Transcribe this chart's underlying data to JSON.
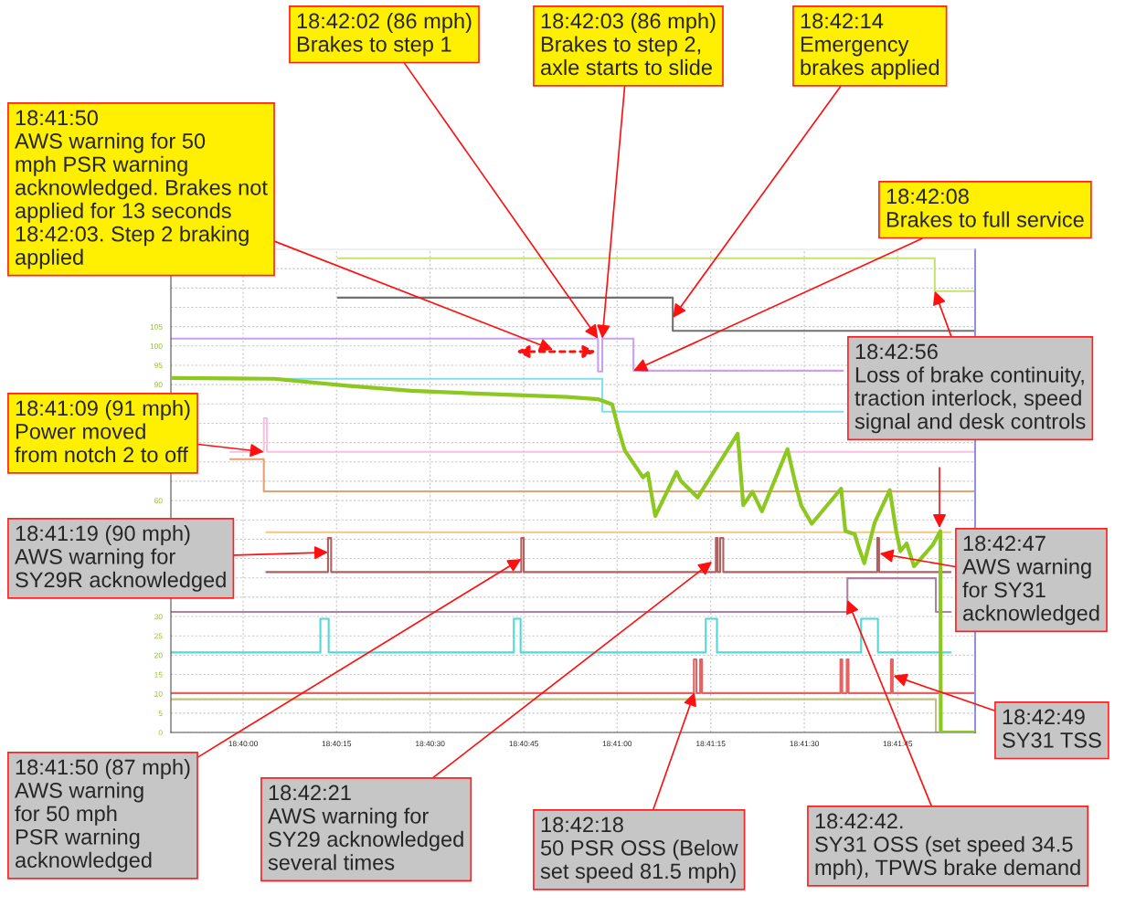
{
  "chart_data": {
    "type": "line",
    "xlim": [
      18.66345,
      18.69928
    ],
    "ylim": [
      0,
      125
    ],
    "xticks": [
      {
        "value": 18.66667,
        "label": "18:40:00"
      },
      {
        "value": 18.67083,
        "label": "18:40:15"
      },
      {
        "value": 18.675,
        "label": "18:40:30"
      },
      {
        "value": 18.67917,
        "label": "18:40:45"
      },
      {
        "value": 18.68333,
        "label": "18:41:00"
      },
      {
        "value": 18.6875,
        "label": "18:41:15"
      },
      {
        "value": 18.69167,
        "label": "18:41:30"
      },
      {
        "value": 18.69583,
        "label": "18:41:45"
      }
    ],
    "yticks": [
      0,
      5,
      10,
      15,
      20,
      25,
      30,
      {
        "value": 35,
        "label": null
      },
      {
        "value": 40,
        "label": null
      },
      {
        "value": 45,
        "label": null
      },
      {
        "value": 50,
        "label": null
      },
      {
        "value": 55,
        "label": null
      },
      60,
      {
        "value": 65,
        "label": null
      },
      {
        "value": 70,
        "label": null
      },
      {
        "value": 75,
        "label": null
      },
      {
        "value": 80,
        "label": null
      },
      {
        "value": 85,
        "label": null
      },
      90,
      95,
      100,
      105,
      {
        "value": 110,
        "label": null
      },
      {
        "value": 115,
        "label": null
      },
      {
        "value": 120,
        "label": null
      }
    ],
    "grid": true,
    "series": [
      {
        "type": "step",
        "color": "#c8e070",
        "x": [
          18.67089,
          18.69748,
          18.69928
        ],
        "values": [
          122.7,
          114.2,
          114.2
        ]
      },
      {
        "type": "step",
        "color": "#707070",
        "x": [
          18.67089,
          18.68581,
          18.69928
        ],
        "values": [
          112.5,
          103.9,
          103.9
        ]
      },
      {
        "type": "step",
        "color": "#c8a0f0",
        "x": [
          18.66345,
          18.68248,
          18.68267,
          18.68406,
          18.69339
        ],
        "values": [
          101.9,
          93.4,
          101.9,
          93.6,
          93.6
        ]
      },
      {
        "type": "step",
        "color": "#80e0f0",
        "x": [
          18.66345,
          18.68267,
          18.69339
        ],
        "values": [
          91.5,
          83.0,
          83.0
        ]
      },
      {
        "type": "step",
        "color": "#f8c0e0",
        "x": [
          18.66609,
          18.66759,
          18.66773,
          18.69928
        ],
        "values": [
          72.6,
          81.3,
          72.6,
          72.6
        ]
      },
      {
        "type": "step",
        "color": "#e8a070",
        "x": [
          18.66609,
          18.66759,
          18.69928
        ],
        "values": [
          70.7,
          62.4,
          62.4
        ]
      },
      {
        "type": "step",
        "color": "#f0c880",
        "x": [
          18.6677,
          18.69819
        ],
        "values": [
          51.8,
          51.8
        ]
      },
      {
        "type": "step",
        "color": "#b06060",
        "x": [
          18.6677,
          18.67045,
          18.67059,
          18.67906,
          18.67917,
          18.68773,
          18.68781,
          18.68792,
          18.68806,
          18.69492,
          18.695,
          18.69819
        ],
        "values": [
          41.5,
          50.3,
          41.5,
          50.3,
          41.5,
          50.3,
          41.5,
          50.3,
          41.5,
          50.3,
          41.5,
          41.5
        ]
      },
      {
        "type": "step",
        "color": "#b080a0",
        "x": [
          18.66345,
          18.69359,
          18.69753,
          18.69819
        ],
        "values": [
          31.2,
          39.9,
          31.2,
          31.2
        ]
      },
      {
        "type": "step",
        "color": "#50d8d8",
        "x": [
          18.66345,
          18.67011,
          18.67048,
          18.67873,
          18.67903,
          18.68728,
          18.68778,
          18.6942,
          18.69495,
          18.69819
        ],
        "values": [
          20.7,
          29.4,
          20.7,
          29.4,
          20.7,
          29.4,
          20.7,
          29.4,
          20.7,
          20.7
        ]
      },
      {
        "type": "step",
        "color": "#e86060",
        "x": [
          18.66345,
          18.68675,
          18.68686,
          18.68703,
          18.68711,
          18.69328,
          18.69336,
          18.69356,
          18.69364,
          18.69553,
          18.69561,
          18.69928
        ],
        "values": [
          10.2,
          18.9,
          10.2,
          18.9,
          10.2,
          18.9,
          10.2,
          18.9,
          10.2,
          18.9,
          10.2,
          10.2
        ]
      },
      {
        "type": "step",
        "color": "#c0c080",
        "x": [
          18.66345,
          18.69753,
          18.69928
        ],
        "values": [
          8.6,
          0,
          0
        ]
      },
      {
        "type": "line",
        "color": "#8cc820",
        "x": [
          18.66345,
          18.66806,
          18.67131,
          18.67417,
          18.67784,
          18.68109,
          18.6825,
          18.68311,
          18.68339,
          18.68367,
          18.68448,
          18.6847,
          18.68503,
          18.68598,
          18.68617,
          18.68692,
          18.6887,
          18.68895,
          18.68936,
          18.68978,
          18.69092,
          18.69128,
          18.69153,
          18.692,
          18.69331,
          18.6935,
          18.69392,
          18.69406,
          18.69434,
          18.69481,
          18.69548,
          18.69575,
          18.69595,
          18.69623,
          18.69656,
          18.69739,
          18.69773,
          18.69775,
          18.69928
        ],
        "values": [
          91.7,
          91.5,
          89.7,
          88.4,
          87.5,
          86.8,
          86.2,
          84.9,
          78.5,
          73.0,
          66.0,
          67.1,
          56.0,
          67.4,
          65.1,
          60.8,
          77.3,
          58.8,
          62.3,
          57.2,
          73.3,
          64.3,
          58.8,
          54.0,
          63.1,
          52.1,
          51.3,
          48.5,
          43.8,
          54.4,
          62.7,
          52.5,
          46.9,
          48.9,
          43.0,
          48.5,
          52.1,
          0,
          0
        ]
      }
    ],
    "annotations": [
      {
        "text": "18:42:02 (86 mph)\nBrakes to step 1",
        "x": 18.68248,
        "y": 101.9
      },
      {
        "text": "18:42:03 (86 mph)\nBrakes to step 2,\naxle starts to slide",
        "x": 18.68267,
        "y": 101.9
      },
      {
        "text": "18:42:14\nEmergency\nbrakes applied",
        "x": 18.68581,
        "y": 107.3
      },
      {
        "text": "18:42:08\nBrakes to full service",
        "x": 18.68406,
        "y": 93.6
      },
      "18:41:50\nAWS warning for 50\nmph PSR warning\nacknowledged. Brakes not\napplied for 13 seconds\n18:42:03. Step 2 braking\napplied",
      {
        "text": "18:41:09 (91 mph)\nPower moved\nfrom notch 2 to off",
        "x": 18.66759,
        "y": 72.6
      },
      {
        "text": "18:41:19 (90 mph)\nAWS warning for\nSY29R acknowledged",
        "x": 18.67045,
        "y": 46.6
      },
      {
        "text": "18:41:50 (87 mph)\nAWS warning\nfor 50 mph\nPSR warning\nacknowledged",
        "x": 18.67906,
        "y": 44.9
      },
      {
        "text": "18:42:21\nAWS warning for\nSY29 acknowledged\nseveral times",
        "x": 18.68756,
        "y": 44.2
      },
      {
        "text": "18:42:18\n50 PSR OSS (Below\nset speed 81.5 mph)",
        "x": 18.68678,
        "y": 10.4
      },
      {
        "text": "18:42:42.\nSY31 OSS (set speed 34.5\nmph), TPWS brake demand",
        "x": 18.69359,
        "y": 34.3
      },
      {
        "text": "18:42:49\nSY31 TSS",
        "x": 18.69564,
        "y": 14.7
      },
      {
        "text": "18:42:47\nAWS warning\nfor SY31\nacknowledged",
        "x": 18.69503,
        "y": 46.3
      },
      {
        "text": "18:42:56\nLoss of brake continuity,\ntraction interlock, speed\nsignal and desk controls",
        "x": 18.69748,
        "y": 114.2
      }
    ]
  }
}
